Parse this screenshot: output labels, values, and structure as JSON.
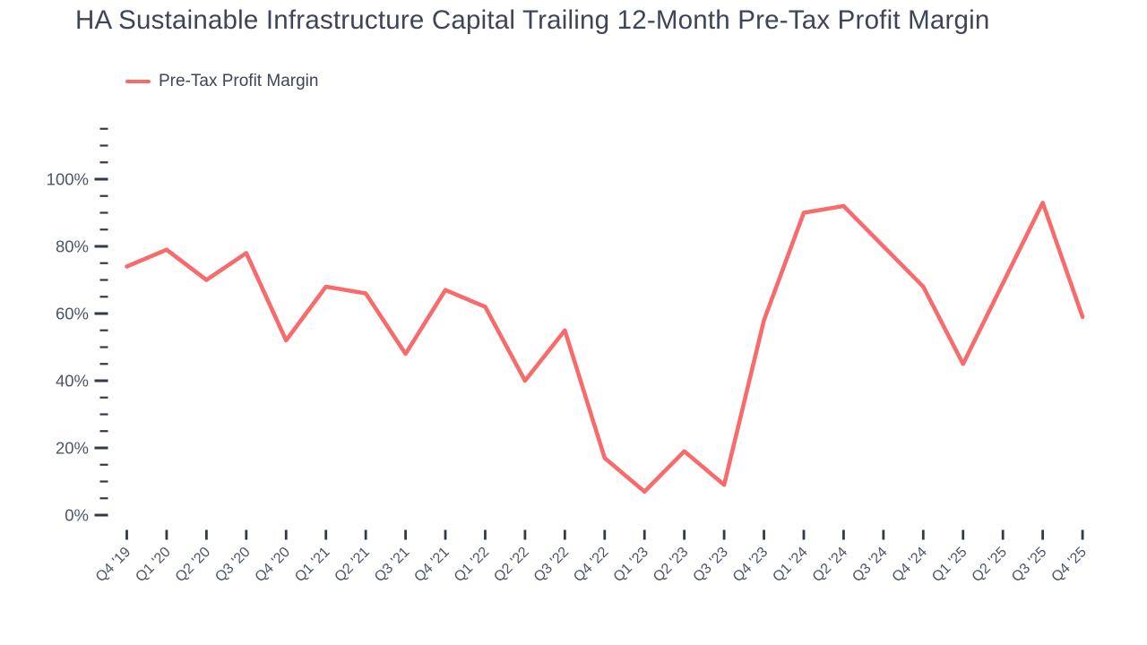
{
  "title": "HA Sustainable Infrastructure Capital Trailing 12-Month Pre-Tax Profit Margin",
  "legend": {
    "label": "Pre-Tax Profit Margin"
  },
  "colors": {
    "line": "#f76b6c",
    "title_text": "#3d4656",
    "tick": "#323a47",
    "axis_label_text": "#4d5666"
  },
  "chart_data": {
    "type": "line",
    "title": "HA Sustainable Infrastructure Capital Trailing 12-Month Pre-Tax Profit Margin",
    "xlabel": "",
    "ylabel": "",
    "grid": false,
    "legend_position": "top-left",
    "legend_entries": [
      "Pre-Tax Profit Margin"
    ],
    "categories": [
      "Q4 '19",
      "Q1 '20",
      "Q2 '20",
      "Q3 '20",
      "Q4 '20",
      "Q1 '21",
      "Q2 '21",
      "Q3 '21",
      "Q4 '21",
      "Q1 '22",
      "Q2 '22",
      "Q3 '22",
      "Q4 '22",
      "Q1 '23",
      "Q2 '23",
      "Q3 '23",
      "Q4 '23",
      "Q1 '24",
      "Q2 '24",
      "Q3 '24",
      "Q4 '24",
      "Q1 '25",
      "Q2 '25",
      "Q3 '25",
      "Q4 '25"
    ],
    "series": [
      {
        "name": "Pre-Tax Profit Margin",
        "values": [
          74,
          79,
          70,
          78,
          52,
          68,
          66,
          48,
          67,
          62,
          40,
          55,
          17,
          7,
          19,
          9,
          58,
          90,
          92,
          80,
          68,
          45,
          69,
          93,
          59
        ]
      }
    ],
    "ylim": [
      0,
      115
    ],
    "y_major_ticks": [
      0,
      20,
      40,
      60,
      80,
      100
    ],
    "y_minor_step": 5,
    "y_tick_suffix": "%"
  }
}
